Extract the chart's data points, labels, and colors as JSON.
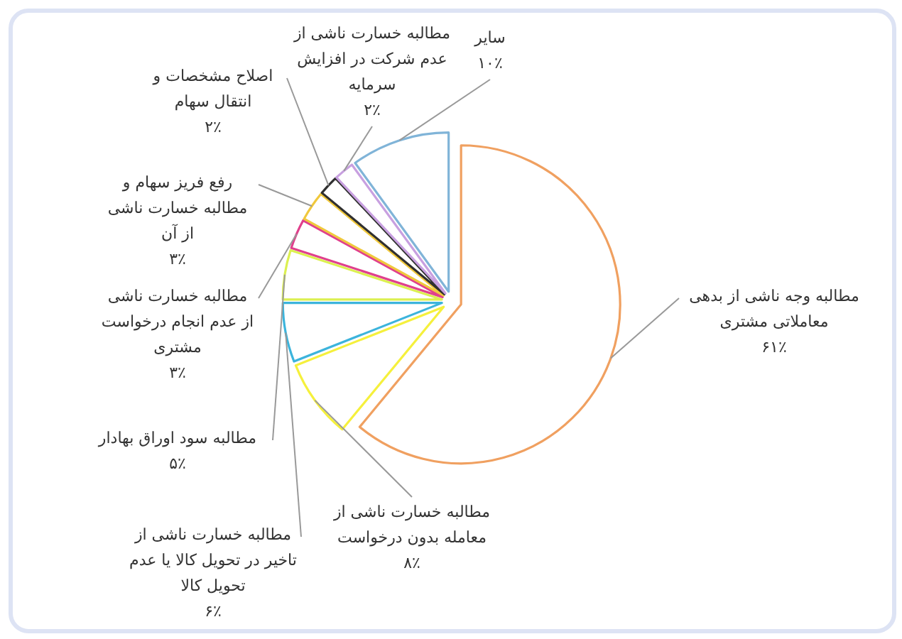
{
  "chart_data": {
    "type": "pie",
    "categories": [
      "مطالبه وجه ناشی از بدهی معاملاتی مشتری",
      "مطالبه خسارت ناشی از معامله بدون درخواست",
      "مطالبه خسارت ناشی از تاخیر در تحویل کالا یا عدم تحویل کالا",
      "مطالبه سود اوراق بهادار",
      "مطالبه خسارت ناشی از عدم انجام درخواست مشتری",
      "رفع فریز سهام و مطالبه خسارت ناشی از آن",
      "اصلاح مشخصات و انتقال سهام",
      "مطالبه خسارت ناشی از عدم شرکت در افزایش سرمایه",
      "سایر"
    ],
    "values": [
      61,
      8,
      6,
      5,
      3,
      3,
      2,
      2,
      10
    ],
    "value_labels": [
      "۶۱٪",
      "۸٪",
      "۶٪",
      "۵٪",
      "۳٪",
      "۳٪",
      "۲٪",
      "۲٪",
      "۱۰٪"
    ],
    "colors": [
      "#f0a060",
      "#f5f03c",
      "#3cb4dc",
      "#dcf050",
      "#e0408c",
      "#f0c83c",
      "#303030",
      "#c8a0e0",
      "#80b4d8"
    ]
  }
}
